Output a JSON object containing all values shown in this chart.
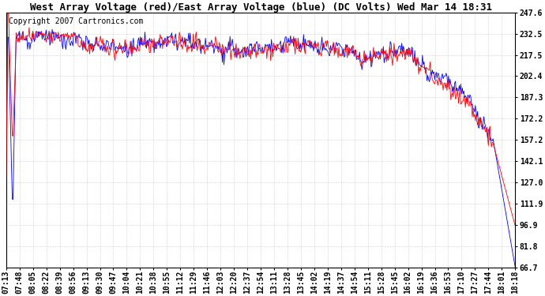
{
  "title": "West Array Voltage (red)/East Array Voltage (blue) (DC Volts) Wed Mar 14 18:31",
  "copyright_text": "Copyright 2007 Cartronics.com",
  "ylabel_right_ticks": [
    247.6,
    232.5,
    217.5,
    202.4,
    187.3,
    172.2,
    157.2,
    142.1,
    127.0,
    111.9,
    96.9,
    81.8,
    66.7
  ],
  "ymin": 66.7,
  "ymax": 247.6,
  "background_color": "#ffffff",
  "plot_bg_color": "#ffffff",
  "grid_color": "#aaaaaa",
  "red_color": "#ff0000",
  "blue_color": "#0000ff",
  "x_labels": [
    "07:13",
    "07:48",
    "08:05",
    "08:22",
    "08:39",
    "08:56",
    "09:13",
    "09:30",
    "09:47",
    "10:04",
    "10:21",
    "10:38",
    "10:55",
    "11:12",
    "11:29",
    "11:46",
    "12:03",
    "12:20",
    "12:37",
    "12:54",
    "13:11",
    "13:28",
    "13:45",
    "14:02",
    "14:19",
    "14:37",
    "14:54",
    "15:11",
    "15:28",
    "15:45",
    "16:02",
    "16:19",
    "16:36",
    "16:53",
    "17:10",
    "17:27",
    "17:44",
    "18:01",
    "18:18"
  ],
  "title_fontsize": 9,
  "tick_fontsize": 7,
  "copyright_fontsize": 7
}
